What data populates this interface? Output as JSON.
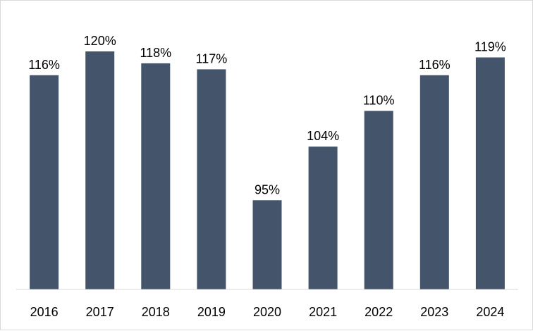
{
  "chart_data": {
    "type": "bar",
    "title": "",
    "xlabel": "",
    "ylabel": "",
    "categories": [
      "2016",
      "2017",
      "2018",
      "2019",
      "2020",
      "2021",
      "2022",
      "2023",
      "2024"
    ],
    "values": [
      116,
      120,
      118,
      117,
      95,
      104,
      110,
      116,
      119
    ],
    "data_labels": [
      "116%",
      "120%",
      "118%",
      "117%",
      "95%",
      "104%",
      "110%",
      "116%",
      "119%"
    ],
    "unit": "%",
    "ylim": [
      80,
      120
    ],
    "grid": false,
    "legend": "none",
    "bar_color": "#44546a",
    "axis_color": "#d9d9d9"
  }
}
